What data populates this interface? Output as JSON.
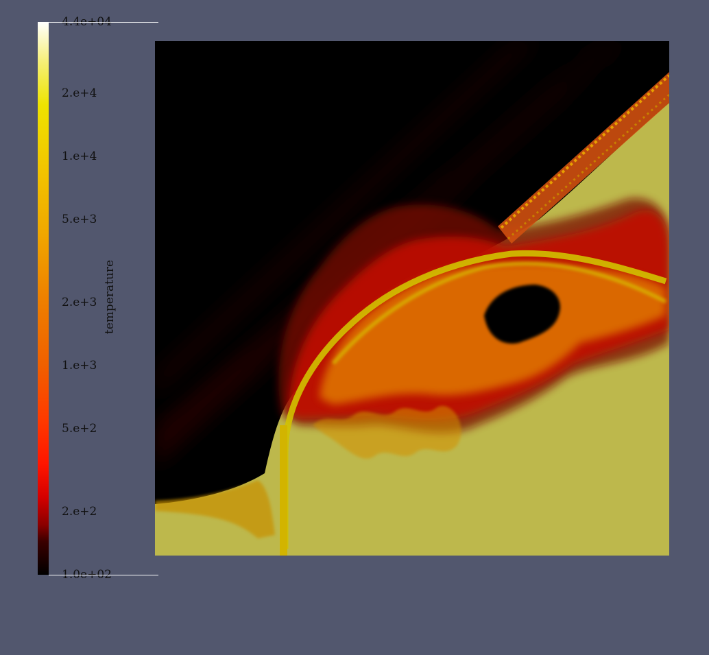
{
  "colorbar": {
    "title": "temperature",
    "scale": "log",
    "colormap": "black-body (black → red → orange → yellow → white)",
    "range": [
      100,
      44000
    ],
    "labels": [
      {
        "text": "4.4e+04",
        "value": 44000
      },
      {
        "text": "2.e+4",
        "value": 20000
      },
      {
        "text": "1.e+4",
        "value": 10000
      },
      {
        "text": "5.e+3",
        "value": 5000
      },
      {
        "text": "2.e+3",
        "value": 2000
      },
      {
        "text": "1.e+3",
        "value": 1000
      },
      {
        "text": "5.e+2",
        "value": 500
      },
      {
        "text": "2.e+2",
        "value": 200
      },
      {
        "text": "1.0e+02",
        "value": 100
      }
    ]
  },
  "colors": {
    "background": "#52576e",
    "cold_gas": "#000000",
    "hot_gas": "#bdb84c",
    "flame_red": "#c01000",
    "flame_orange": "#e07800",
    "flame_yellow": "#d2c200"
  }
}
